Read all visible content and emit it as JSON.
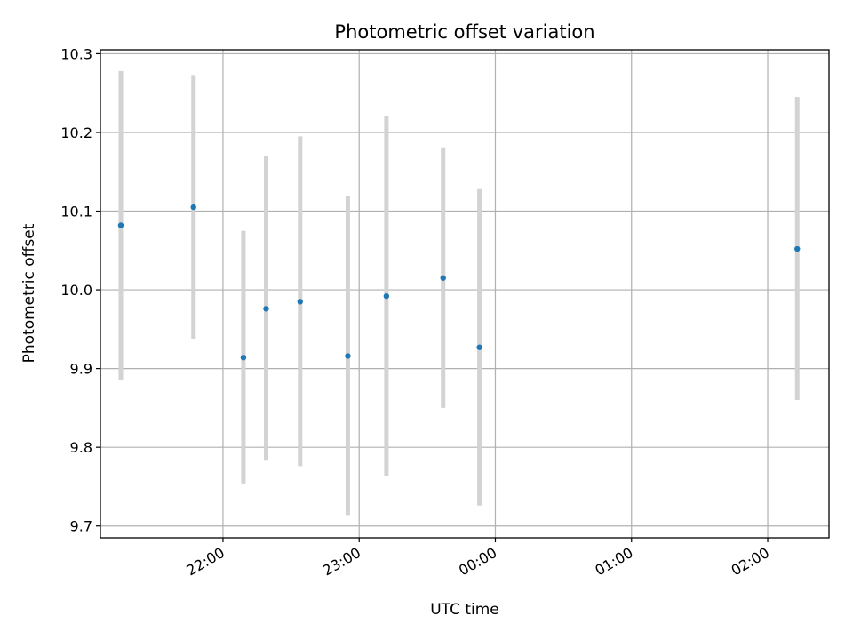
{
  "chart_data": {
    "type": "scatter",
    "title": "Photometric offset variation",
    "xlabel": "UTC time",
    "ylabel": "Photometric offset",
    "x_ticks": [
      "22:00",
      "23:00",
      "00:00",
      "01:00",
      "02:00"
    ],
    "y_ticks": [
      "9.7",
      "9.8",
      "9.9",
      "10.0",
      "10.1",
      "10.2",
      "10.3"
    ],
    "ylim": [
      9.685,
      10.305
    ],
    "xlim": [
      "21:06",
      "02:27"
    ],
    "grid": true,
    "marker_color": "#1f77b4",
    "errorbar_color": "#d3d3d3",
    "points": [
      {
        "time": "21:15",
        "y": 10.082,
        "err_low": 9.886,
        "err_high": 10.278
      },
      {
        "time": "21:47",
        "y": 10.105,
        "err_low": 9.938,
        "err_high": 10.273
      },
      {
        "time": "22:09",
        "y": 9.914,
        "err_low": 9.754,
        "err_high": 10.075
      },
      {
        "time": "22:19",
        "y": 9.976,
        "err_low": 9.783,
        "err_high": 10.17
      },
      {
        "time": "22:34",
        "y": 9.985,
        "err_low": 9.776,
        "err_high": 10.195
      },
      {
        "time": "22:55",
        "y": 9.916,
        "err_low": 9.714,
        "err_high": 10.119
      },
      {
        "time": "23:12",
        "y": 9.992,
        "err_low": 9.763,
        "err_high": 10.221
      },
      {
        "time": "23:37",
        "y": 10.015,
        "err_low": 9.85,
        "err_high": 10.181
      },
      {
        "time": "23:53",
        "y": 9.927,
        "err_low": 9.726,
        "err_high": 10.128
      },
      {
        "time": "02:13",
        "y": 10.052,
        "err_low": 9.86,
        "err_high": 10.245
      }
    ]
  }
}
